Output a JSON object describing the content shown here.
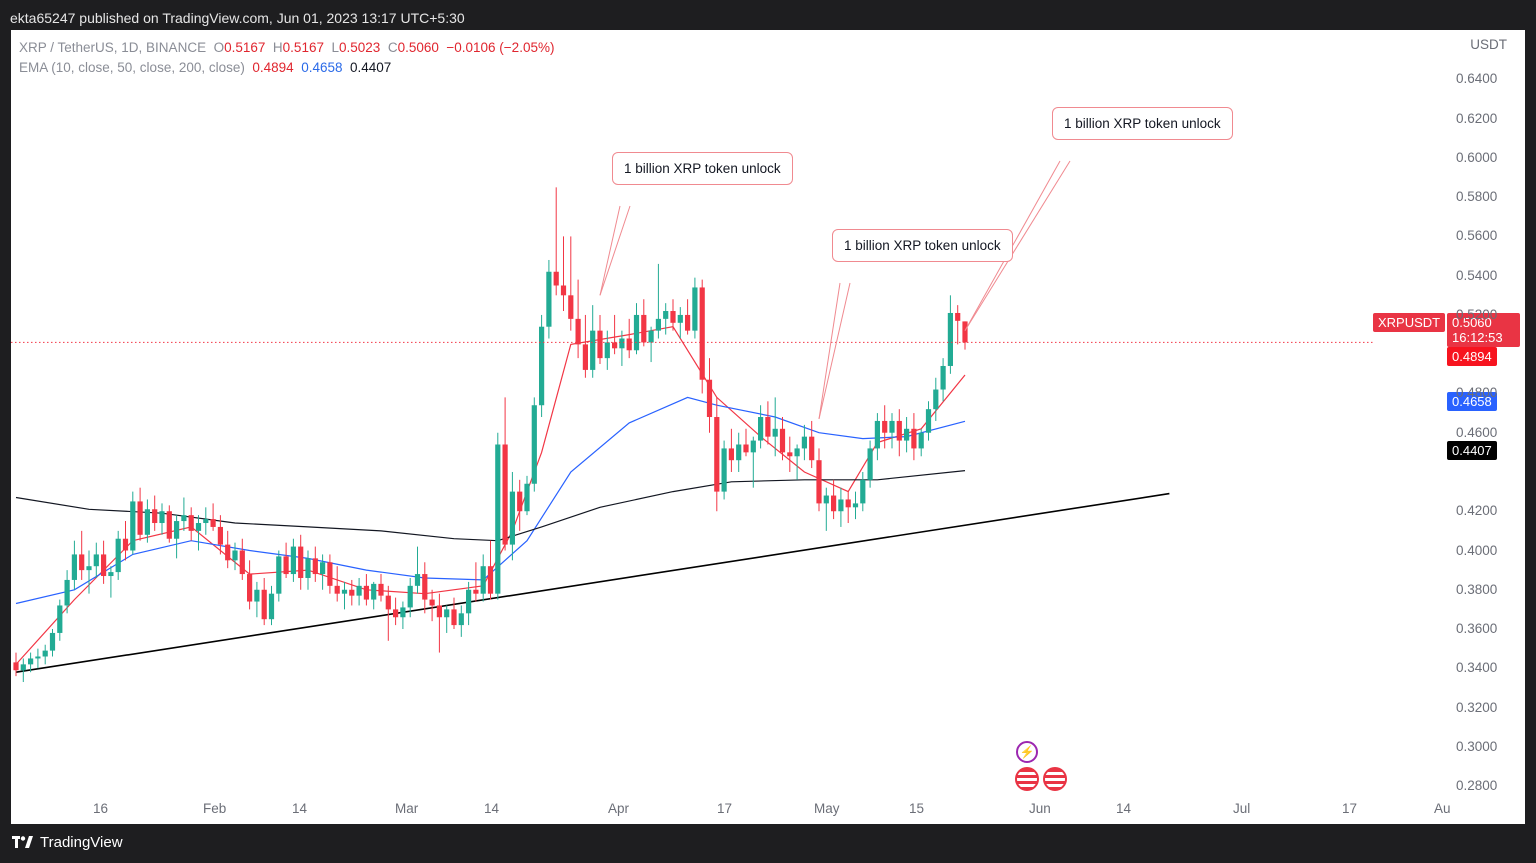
{
  "header": {
    "published": "ekta65247 published on TradingView.com, Jun 01, 2023 13:17 UTC+5:30"
  },
  "legend": {
    "symbol": "XRP / TetherUS, 1D, BINANCE",
    "o_label": "O",
    "o": "0.5167",
    "h_label": "H",
    "h": "0.5167",
    "l_label": "L",
    "l": "0.5023",
    "c_label": "C",
    "c": "0.5060",
    "change": "−0.0106 (−2.05%)",
    "ema_label": "EMA (10, close, 50, close, 200, close)",
    "ema10": "0.4894",
    "ema50": "0.4658",
    "ema200": "0.4407"
  },
  "axis": {
    "currency": "USDT",
    "price_ticks": [
      "0.6400",
      "0.6200",
      "0.6000",
      "0.5800",
      "0.5600",
      "0.5400",
      "0.5200",
      "0.4800",
      "0.4600",
      "0.4200",
      "0.4000",
      "0.3800",
      "0.3600",
      "0.3400",
      "0.3200",
      "0.3000",
      "0.2800"
    ],
    "date_ticks": [
      "16",
      "Feb",
      "14",
      "Mar",
      "14",
      "Apr",
      "17",
      "May",
      "15",
      "Jun",
      "14",
      "Jul",
      "17",
      "Au"
    ]
  },
  "tags": {
    "symbol": "XRPUSDT",
    "last_price": "0.5060",
    "countdown": "16:12:53",
    "ema10": "0.4894",
    "ema50": "0.4658",
    "ema200": "0.4407"
  },
  "annotations": [
    "1 billion XRP token unlock",
    "1 billion XRP token unlock",
    "1 billion XRP token unlock"
  ],
  "footer": {
    "brand": "TradingView"
  },
  "colors": {
    "up": "#22ab94",
    "down": "#f23645",
    "ema10": "#f23645",
    "ema50": "#2962ff",
    "ema200": "#131722",
    "trendline": "#000000"
  },
  "chart_data": {
    "type": "candlestick",
    "symbol": "XRP / TetherUS",
    "interval": "1D",
    "exchange": "BINANCE",
    "ylim": [
      0.27,
      0.645
    ],
    "x_range": [
      "2023-01-08",
      "2023-08-01"
    ],
    "candles_ohlc": [
      [
        0.343,
        0.348,
        0.336,
        0.339
      ],
      [
        0.339,
        0.345,
        0.333,
        0.342
      ],
      [
        0.342,
        0.348,
        0.338,
        0.345
      ],
      [
        0.345,
        0.35,
        0.34,
        0.346
      ],
      [
        0.346,
        0.352,
        0.342,
        0.349
      ],
      [
        0.349,
        0.36,
        0.346,
        0.358
      ],
      [
        0.358,
        0.375,
        0.354,
        0.372
      ],
      [
        0.372,
        0.39,
        0.368,
        0.385
      ],
      [
        0.385,
        0.405,
        0.38,
        0.398
      ],
      [
        0.398,
        0.41,
        0.385,
        0.39
      ],
      [
        0.39,
        0.4,
        0.378,
        0.392
      ],
      [
        0.392,
        0.404,
        0.386,
        0.398
      ],
      [
        0.398,
        0.405,
        0.383,
        0.387
      ],
      [
        0.387,
        0.392,
        0.376,
        0.389
      ],
      [
        0.389,
        0.41,
        0.385,
        0.406
      ],
      [
        0.406,
        0.415,
        0.395,
        0.4
      ],
      [
        0.4,
        0.43,
        0.398,
        0.425
      ],
      [
        0.425,
        0.432,
        0.405,
        0.408
      ],
      [
        0.408,
        0.426,
        0.404,
        0.421
      ],
      [
        0.421,
        0.428,
        0.41,
        0.414
      ],
      [
        0.414,
        0.424,
        0.408,
        0.42
      ],
      [
        0.42,
        0.423,
        0.404,
        0.406
      ],
      [
        0.406,
        0.418,
        0.396,
        0.415
      ],
      [
        0.415,
        0.427,
        0.41,
        0.418
      ],
      [
        0.418,
        0.422,
        0.405,
        0.41
      ],
      [
        0.41,
        0.418,
        0.4,
        0.414
      ],
      [
        0.414,
        0.422,
        0.408,
        0.416
      ],
      [
        0.416,
        0.424,
        0.41,
        0.412
      ],
      [
        0.412,
        0.418,
        0.398,
        0.403
      ],
      [
        0.403,
        0.41,
        0.391,
        0.395
      ],
      [
        0.395,
        0.404,
        0.39,
        0.4
      ],
      [
        0.4,
        0.406,
        0.385,
        0.388
      ],
      [
        0.388,
        0.395,
        0.37,
        0.374
      ],
      [
        0.374,
        0.384,
        0.366,
        0.38
      ],
      [
        0.38,
        0.386,
        0.362,
        0.365
      ],
      [
        0.365,
        0.382,
        0.362,
        0.378
      ],
      [
        0.378,
        0.4,
        0.374,
        0.397
      ],
      [
        0.397,
        0.404,
        0.386,
        0.388
      ],
      [
        0.388,
        0.406,
        0.384,
        0.402
      ],
      [
        0.402,
        0.408,
        0.38,
        0.386
      ],
      [
        0.386,
        0.4,
        0.38,
        0.396
      ],
      [
        0.396,
        0.402,
        0.384,
        0.388
      ],
      [
        0.388,
        0.398,
        0.38,
        0.394
      ],
      [
        0.394,
        0.398,
        0.378,
        0.382
      ],
      [
        0.382,
        0.392,
        0.374,
        0.378
      ],
      [
        0.378,
        0.384,
        0.37,
        0.38
      ],
      [
        0.38,
        0.385,
        0.372,
        0.377
      ],
      [
        0.377,
        0.386,
        0.372,
        0.382
      ],
      [
        0.382,
        0.388,
        0.372,
        0.375
      ],
      [
        0.375,
        0.384,
        0.37,
        0.383
      ],
      [
        0.383,
        0.388,
        0.374,
        0.377
      ],
      [
        0.377,
        0.382,
        0.354,
        0.37
      ],
      [
        0.37,
        0.376,
        0.362,
        0.366
      ],
      [
        0.366,
        0.374,
        0.36,
        0.371
      ],
      [
        0.371,
        0.386,
        0.366,
        0.382
      ],
      [
        0.382,
        0.402,
        0.378,
        0.388
      ],
      [
        0.388,
        0.394,
        0.368,
        0.375
      ],
      [
        0.375,
        0.38,
        0.364,
        0.372
      ],
      [
        0.372,
        0.378,
        0.348,
        0.366
      ],
      [
        0.366,
        0.372,
        0.358,
        0.37
      ],
      [
        0.37,
        0.376,
        0.36,
        0.362
      ],
      [
        0.362,
        0.372,
        0.356,
        0.368
      ],
      [
        0.368,
        0.384,
        0.362,
        0.38
      ],
      [
        0.38,
        0.394,
        0.374,
        0.378
      ],
      [
        0.378,
        0.398,
        0.374,
        0.392
      ],
      [
        0.392,
        0.405,
        0.375,
        0.378
      ],
      [
        0.378,
        0.46,
        0.375,
        0.454
      ],
      [
        0.454,
        0.478,
        0.4,
        0.403
      ],
      [
        0.403,
        0.44,
        0.395,
        0.43
      ],
      [
        0.43,
        0.436,
        0.41,
        0.42
      ],
      [
        0.42,
        0.438,
        0.418,
        0.434
      ],
      [
        0.434,
        0.478,
        0.43,
        0.474
      ],
      [
        0.474,
        0.52,
        0.468,
        0.514
      ],
      [
        0.514,
        0.548,
        0.508,
        0.542
      ],
      [
        0.542,
        0.585,
        0.53,
        0.535
      ],
      [
        0.535,
        0.56,
        0.522,
        0.53
      ],
      [
        0.53,
        0.56,
        0.512,
        0.518
      ],
      [
        0.518,
        0.538,
        0.498,
        0.505
      ],
      [
        0.505,
        0.52,
        0.488,
        0.492
      ],
      [
        0.492,
        0.525,
        0.488,
        0.512
      ],
      [
        0.512,
        0.52,
        0.495,
        0.498
      ],
      [
        0.498,
        0.512,
        0.492,
        0.506
      ],
      [
        0.506,
        0.52,
        0.5,
        0.503
      ],
      [
        0.503,
        0.512,
        0.494,
        0.508
      ],
      [
        0.508,
        0.518,
        0.498,
        0.502
      ],
      [
        0.502,
        0.526,
        0.5,
        0.52
      ],
      [
        0.52,
        0.528,
        0.504,
        0.506
      ],
      [
        0.506,
        0.514,
        0.496,
        0.512
      ],
      [
        0.512,
        0.546,
        0.508,
        0.518
      ],
      [
        0.518,
        0.526,
        0.51,
        0.522
      ],
      [
        0.522,
        0.528,
        0.512,
        0.516
      ],
      [
        0.516,
        0.524,
        0.508,
        0.52
      ],
      [
        0.52,
        0.528,
        0.51,
        0.512
      ],
      [
        0.512,
        0.539,
        0.508,
        0.534
      ],
      [
        0.534,
        0.538,
        0.48,
        0.487
      ],
      [
        0.487,
        0.498,
        0.46,
        0.468
      ],
      [
        0.468,
        0.478,
        0.42,
        0.43
      ],
      [
        0.43,
        0.456,
        0.426,
        0.452
      ],
      [
        0.452,
        0.462,
        0.44,
        0.446
      ],
      [
        0.446,
        0.46,
        0.44,
        0.454
      ],
      [
        0.454,
        0.462,
        0.448,
        0.45
      ],
      [
        0.45,
        0.458,
        0.432,
        0.456
      ],
      [
        0.456,
        0.474,
        0.452,
        0.468
      ],
      [
        0.468,
        0.476,
        0.454,
        0.458
      ],
      [
        0.458,
        0.478,
        0.448,
        0.462
      ],
      [
        0.462,
        0.468,
        0.446,
        0.45
      ],
      [
        0.45,
        0.458,
        0.44,
        0.448
      ],
      [
        0.448,
        0.454,
        0.436,
        0.452
      ],
      [
        0.452,
        0.464,
        0.446,
        0.458
      ],
      [
        0.458,
        0.466,
        0.442,
        0.446
      ],
      [
        0.446,
        0.452,
        0.42,
        0.424
      ],
      [
        0.424,
        0.432,
        0.41,
        0.428
      ],
      [
        0.428,
        0.436,
        0.416,
        0.42
      ],
      [
        0.42,
        0.432,
        0.412,
        0.426
      ],
      [
        0.426,
        0.43,
        0.414,
        0.422
      ],
      [
        0.422,
        0.43,
        0.416,
        0.424
      ],
      [
        0.424,
        0.44,
        0.42,
        0.436
      ],
      [
        0.436,
        0.456,
        0.432,
        0.452
      ],
      [
        0.452,
        0.47,
        0.446,
        0.466
      ],
      [
        0.466,
        0.474,
        0.452,
        0.46
      ],
      [
        0.46,
        0.47,
        0.452,
        0.466
      ],
      [
        0.466,
        0.472,
        0.448,
        0.456
      ],
      [
        0.456,
        0.468,
        0.45,
        0.462
      ],
      [
        0.462,
        0.47,
        0.446,
        0.452
      ],
      [
        0.452,
        0.462,
        0.448,
        0.46
      ],
      [
        0.46,
        0.476,
        0.456,
        0.472
      ],
      [
        0.472,
        0.488,
        0.466,
        0.482
      ],
      [
        0.482,
        0.498,
        0.476,
        0.494
      ],
      [
        0.494,
        0.53,
        0.49,
        0.521
      ],
      [
        0.521,
        0.525,
        0.505,
        0.517
      ],
      [
        0.5167,
        0.5167,
        0.5023,
        0.506
      ]
    ],
    "ema": [
      {
        "name": "EMA 10",
        "last": 0.4894,
        "points": [
          [
            0,
            0.342
          ],
          [
            8,
            0.375
          ],
          [
            16,
            0.405
          ],
          [
            24,
            0.412
          ],
          [
            32,
            0.388
          ],
          [
            40,
            0.39
          ],
          [
            48,
            0.38
          ],
          [
            56,
            0.378
          ],
          [
            64,
            0.382
          ],
          [
            68,
            0.41
          ],
          [
            72,
            0.45
          ],
          [
            76,
            0.505
          ],
          [
            84,
            0.51
          ],
          [
            90,
            0.514
          ],
          [
            96,
            0.478
          ],
          [
            102,
            0.458
          ],
          [
            108,
            0.44
          ],
          [
            114,
            0.43
          ],
          [
            118,
            0.455
          ],
          [
            124,
            0.462
          ],
          [
            130,
            0.4894
          ]
        ]
      },
      {
        "name": "EMA 50",
        "last": 0.4658,
        "points": [
          [
            0,
            0.373
          ],
          [
            8,
            0.38
          ],
          [
            16,
            0.398
          ],
          [
            24,
            0.405
          ],
          [
            32,
            0.4
          ],
          [
            40,
            0.396
          ],
          [
            48,
            0.39
          ],
          [
            56,
            0.386
          ],
          [
            64,
            0.385
          ],
          [
            70,
            0.405
          ],
          [
            76,
            0.44
          ],
          [
            84,
            0.465
          ],
          [
            92,
            0.478
          ],
          [
            96,
            0.474
          ],
          [
            104,
            0.468
          ],
          [
            110,
            0.46
          ],
          [
            116,
            0.457
          ],
          [
            122,
            0.458
          ],
          [
            130,
            0.4658
          ]
        ]
      },
      {
        "name": "EMA 200",
        "last": 0.4407,
        "points": [
          [
            0,
            0.427
          ],
          [
            10,
            0.421
          ],
          [
            20,
            0.419
          ],
          [
            30,
            0.414
          ],
          [
            40,
            0.412
          ],
          [
            50,
            0.41
          ],
          [
            60,
            0.406
          ],
          [
            66,
            0.405
          ],
          [
            72,
            0.412
          ],
          [
            80,
            0.422
          ],
          [
            90,
            0.43
          ],
          [
            98,
            0.435
          ],
          [
            108,
            0.436
          ],
          [
            118,
            0.436
          ],
          [
            130,
            0.4407
          ]
        ]
      }
    ],
    "trendline": [
      [
        0,
        0.338
      ],
      [
        158,
        0.429
      ]
    ],
    "last_price": 0.506
  }
}
